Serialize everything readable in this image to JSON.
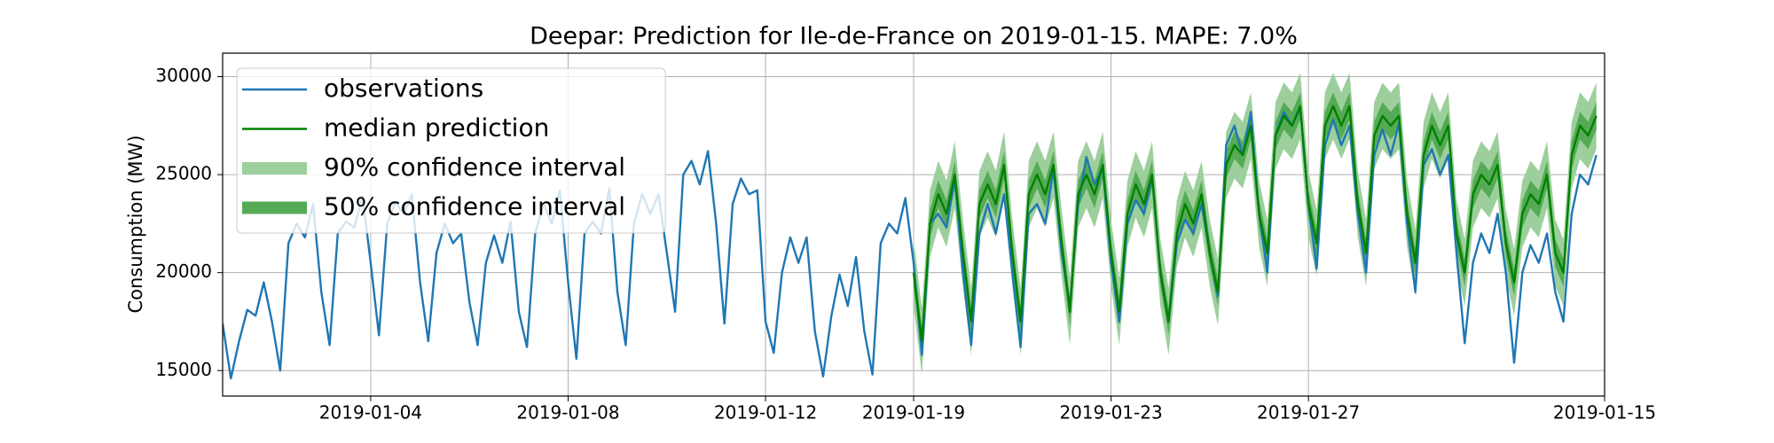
{
  "chart_data": {
    "type": "line",
    "title": "Deepar: Prediction for Ile-de-France on 2019-01-15. MAPE: 7.0%",
    "y_label": "Consumption (MW)",
    "xlim": [
      0,
      672
    ],
    "xticks": [
      {
        "value": 72,
        "label": "2019-01-04"
      },
      {
        "value": 168,
        "label": "2019-01-08"
      },
      {
        "value": 264,
        "label": "2019-01-12"
      },
      {
        "value": 336,
        "label": "2019-01-19"
      },
      {
        "value": 432,
        "label": "2019-01-23"
      },
      {
        "value": 528,
        "label": "2019-01-27"
      },
      {
        "value": 672,
        "label": "2019-01-15"
      }
    ],
    "ylim": [
      13700,
      31200
    ],
    "yticks": [
      15000,
      20000,
      25000,
      30000
    ],
    "grid": true,
    "legend": "upper left",
    "series": [
      {
        "name": "observations",
        "color": "#1f77b4",
        "x": [
          0,
          4,
          8,
          12,
          16,
          20,
          24,
          28,
          32,
          36,
          40,
          44,
          48,
          52,
          56,
          60,
          64,
          68,
          72,
          76,
          80,
          84,
          88,
          92,
          96,
          100,
          104,
          108,
          112,
          116,
          120,
          124,
          128,
          132,
          136,
          140,
          144,
          148,
          152,
          156,
          160,
          164,
          168,
          172,
          176,
          180,
          184,
          188,
          192,
          196,
          200,
          204,
          208,
          212,
          216,
          220,
          224,
          228,
          232,
          236,
          240,
          244,
          248,
          252,
          256,
          260,
          264,
          268,
          272,
          276,
          280,
          284,
          288,
          292,
          296,
          300,
          304,
          308,
          312,
          316,
          320,
          324,
          328,
          332,
          336,
          340,
          344,
          348,
          352,
          356,
          360,
          364,
          368,
          372,
          376,
          380,
          384,
          388,
          392,
          396,
          400,
          404,
          408,
          412,
          416,
          420,
          424,
          428,
          432,
          436,
          440,
          444,
          448,
          452,
          456,
          460,
          464,
          468,
          472,
          476,
          480,
          484,
          488,
          492,
          496,
          500,
          504,
          508,
          512,
          516,
          520,
          524,
          528,
          532,
          536,
          540,
          544,
          548,
          552,
          556,
          560,
          564,
          568,
          572,
          576,
          580,
          584,
          588,
          592,
          596,
          600,
          604,
          608,
          612,
          616,
          620,
          624,
          628,
          632,
          636,
          640,
          644,
          648,
          652,
          656,
          660,
          664,
          668
        ],
        "values": [
          17400,
          14600,
          16500,
          18100,
          17800,
          19500,
          17500,
          15000,
          21500,
          22500,
          21800,
          23500,
          19000,
          16300,
          22000,
          22600,
          22300,
          23900,
          20500,
          16800,
          22500,
          23600,
          23000,
          24000,
          19500,
          16500,
          21000,
          22500,
          21500,
          22000,
          18500,
          16300,
          20500,
          21900,
          20500,
          22600,
          18000,
          16200,
          22000,
          23500,
          22500,
          24200,
          19500,
          15600,
          22000,
          22600,
          22000,
          24300,
          19000,
          16300,
          22500,
          24000,
          23000,
          24000,
          21000,
          18000,
          25000,
          25700,
          24500,
          26200,
          22500,
          17400,
          23500,
          24800,
          24000,
          24200,
          17500,
          15900,
          20000,
          21800,
          20500,
          21800,
          17000,
          14700,
          17800,
          19900,
          18300,
          20800,
          17000,
          14800,
          21500,
          22500,
          22000,
          23800,
          20500,
          15800,
          22500,
          23000,
          22300,
          24800,
          20000,
          16300,
          22000,
          23500,
          22000,
          24000,
          20000,
          16200,
          23000,
          23500,
          22500,
          25300,
          21000,
          18200,
          23500,
          25900,
          24500,
          25300,
          20500,
          17500,
          22500,
          23700,
          23000,
          24900,
          20000,
          17500,
          21500,
          22700,
          22000,
          23500,
          21000,
          18800,
          26500,
          27500,
          26000,
          28200,
          23000,
          20000,
          27000,
          28200,
          27500,
          28400,
          23500,
          20200,
          26500,
          27800,
          26500,
          27500,
          23000,
          20000,
          26000,
          27300,
          26000,
          27600,
          22500,
          19000,
          25500,
          26300,
          25000,
          26000,
          21000,
          16400,
          20500,
          22000,
          21000,
          23000,
          20000,
          15400,
          20000,
          21400,
          20500,
          22000,
          19000,
          17500,
          23000,
          25000,
          24500,
          26000
        ]
      },
      {
        "name": "median prediction",
        "color": "#008000",
        "x": [
          336,
          340,
          344,
          348,
          352,
          356,
          360,
          364,
          368,
          372,
          376,
          380,
          384,
          388,
          392,
          396,
          400,
          404,
          408,
          412,
          416,
          420,
          424,
          428,
          432,
          436,
          440,
          444,
          448,
          452,
          456,
          460,
          464,
          468,
          472,
          476,
          480,
          484,
          488,
          492,
          496,
          500,
          504,
          508,
          512,
          516,
          520,
          524,
          528,
          532,
          536,
          540,
          544,
          548,
          552,
          556,
          560,
          564,
          568,
          572,
          576,
          580,
          584,
          588,
          592,
          596,
          600,
          604,
          608,
          612,
          616,
          620,
          624,
          628,
          632,
          636,
          640,
          644,
          648,
          652,
          656,
          660,
          664,
          668
        ],
        "values": [
          20000,
          16500,
          22500,
          24000,
          23000,
          25000,
          21000,
          17500,
          23500,
          24500,
          23500,
          25500,
          21000,
          17500,
          24000,
          25000,
          24000,
          25500,
          21500,
          18000,
          24000,
          25000,
          24000,
          25500,
          21000,
          18000,
          23000,
          24500,
          23500,
          25000,
          20000,
          17500,
          22000,
          23500,
          22500,
          24000,
          21000,
          19000,
          25500,
          26500,
          26000,
          27500,
          23000,
          21000,
          27000,
          28000,
          27500,
          28500,
          23500,
          21500,
          27500,
          28500,
          27500,
          28500,
          23500,
          21000,
          27000,
          28000,
          27500,
          28000,
          23000,
          20500,
          26000,
          27500,
          26500,
          27500,
          22000,
          20000,
          24000,
          25000,
          24500,
          25500,
          21500,
          19500,
          23000,
          24000,
          23500,
          25000,
          21000,
          20000,
          26000,
          27500,
          27000,
          28000
        ]
      },
      {
        "name": "90% confidence interval",
        "color": "#9ccf9c",
        "x": [
          336,
          340,
          344,
          348,
          352,
          356,
          360,
          364,
          368,
          372,
          376,
          380,
          384,
          388,
          392,
          396,
          400,
          404,
          408,
          412,
          416,
          420,
          424,
          428,
          432,
          436,
          440,
          444,
          448,
          452,
          456,
          460,
          464,
          468,
          472,
          476,
          480,
          484,
          488,
          492,
          496,
          500,
          504,
          508,
          512,
          516,
          520,
          524,
          528,
          532,
          536,
          540,
          544,
          548,
          552,
          556,
          560,
          564,
          568,
          572,
          576,
          580,
          584,
          588,
          592,
          596,
          600,
          604,
          608,
          612,
          616,
          620,
          624,
          628,
          632,
          636,
          640,
          644,
          648,
          652,
          656,
          660,
          664,
          668
        ],
        "lower": [
          18300,
          14800,
          20800,
          22300,
          21300,
          23300,
          19300,
          15800,
          21800,
          22800,
          21800,
          23800,
          19300,
          15800,
          22300,
          23300,
          22300,
          23800,
          19800,
          16300,
          22300,
          23300,
          22300,
          23800,
          19300,
          16300,
          21300,
          22800,
          21800,
          23300,
          18300,
          15800,
          20300,
          21800,
          20800,
          22300,
          19300,
          17300,
          23800,
          24800,
          24300,
          25800,
          21300,
          19300,
          25300,
          26300,
          25800,
          26800,
          21800,
          19800,
          25800,
          26800,
          25800,
          26800,
          21800,
          19300,
          25300,
          26300,
          25800,
          26300,
          21300,
          18800,
          24300,
          25800,
          24800,
          25800,
          20300,
          18300,
          22300,
          23300,
          22800,
          23800,
          19800,
          17800,
          21300,
          22300,
          21800,
          23300,
          19300,
          18300,
          24300,
          25800,
          25300,
          26300
        ],
        "upper": [
          21700,
          18200,
          24200,
          25700,
          24700,
          26700,
          22700,
          19200,
          25200,
          26200,
          25200,
          27200,
          22700,
          19200,
          25700,
          26700,
          25700,
          27200,
          23200,
          19700,
          25700,
          26700,
          25700,
          27200,
          22700,
          19700,
          24700,
          26200,
          25200,
          26700,
          21700,
          19200,
          23700,
          25200,
          24200,
          25700,
          22700,
          20700,
          27200,
          28200,
          27700,
          29200,
          24700,
          22700,
          28700,
          29700,
          29200,
          30200,
          25200,
          23200,
          29200,
          30200,
          29200,
          30200,
          25200,
          22700,
          28700,
          29700,
          29200,
          29700,
          24700,
          22200,
          27700,
          29200,
          28200,
          29200,
          23700,
          21700,
          25700,
          26700,
          26200,
          27200,
          23200,
          21200,
          24700,
          25700,
          25200,
          26700,
          22700,
          21700,
          27700,
          29200,
          28700,
          29700
        ]
      },
      {
        "name": "50% confidence interval",
        "color": "#55ab55",
        "x": [
          336,
          340,
          344,
          348,
          352,
          356,
          360,
          364,
          368,
          372,
          376,
          380,
          384,
          388,
          392,
          396,
          400,
          404,
          408,
          412,
          416,
          420,
          424,
          428,
          432,
          436,
          440,
          444,
          448,
          452,
          456,
          460,
          464,
          468,
          472,
          476,
          480,
          484,
          488,
          492,
          496,
          500,
          504,
          508,
          512,
          516,
          520,
          524,
          528,
          532,
          536,
          540,
          544,
          548,
          552,
          556,
          560,
          564,
          568,
          572,
          576,
          580,
          584,
          588,
          592,
          596,
          600,
          604,
          608,
          612,
          616,
          620,
          624,
          628,
          632,
          636,
          640,
          644,
          648,
          652,
          656,
          660,
          664,
          668
        ],
        "lower": [
          19300,
          15800,
          21800,
          23300,
          22300,
          24300,
          20300,
          16800,
          22800,
          23800,
          22800,
          24800,
          20300,
          16800,
          23300,
          24300,
          23300,
          24800,
          20800,
          17300,
          23300,
          24300,
          23300,
          24800,
          20300,
          17300,
          22300,
          23800,
          22800,
          24300,
          19300,
          16800,
          21300,
          22800,
          21800,
          23300,
          20300,
          18300,
          24800,
          25800,
          25300,
          26800,
          22300,
          20300,
          26300,
          27300,
          26800,
          27800,
          22800,
          20800,
          26800,
          27800,
          26800,
          27800,
          22800,
          20300,
          26300,
          27300,
          26800,
          27300,
          22300,
          19800,
          25300,
          26800,
          25800,
          26800,
          21300,
          19300,
          23300,
          24300,
          23800,
          24800,
          20800,
          18800,
          22300,
          23300,
          22800,
          24300,
          20300,
          19300,
          25300,
          26800,
          26300,
          27300
        ],
        "upper": [
          20700,
          17200,
          23200,
          24700,
          23700,
          25700,
          21700,
          18200,
          24200,
          25200,
          24200,
          26200,
          21700,
          18200,
          24700,
          25700,
          24700,
          26200,
          22200,
          18700,
          24700,
          25700,
          24700,
          26200,
          21700,
          18700,
          23700,
          25200,
          24200,
          25700,
          20700,
          18200,
          22700,
          24200,
          23200,
          24700,
          21700,
          19700,
          26200,
          27200,
          26700,
          28200,
          23700,
          21700,
          27700,
          28700,
          28200,
          29200,
          24200,
          22200,
          28200,
          29200,
          28200,
          29200,
          24200,
          21700,
          27700,
          28700,
          28200,
          28700,
          23700,
          21200,
          26700,
          28200,
          27200,
          28200,
          22700,
          20700,
          24700,
          25700,
          25200,
          26200,
          22200,
          20200,
          23700,
          24700,
          24200,
          25700,
          21700,
          20700,
          26700,
          28200,
          27700,
          28700
        ]
      }
    ]
  }
}
